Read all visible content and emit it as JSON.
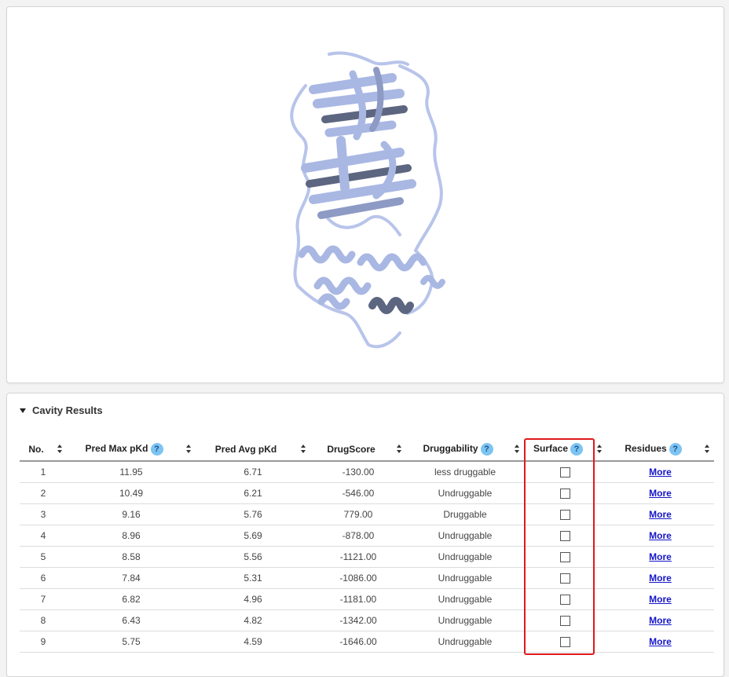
{
  "viewer": {
    "structure_icon": "protein-ribbon-structure"
  },
  "section": {
    "title": "Cavity Results",
    "collapse_icon": "caret-down-icon"
  },
  "table": {
    "headers": {
      "no": "No.",
      "pred_max": "Pred Max pKd",
      "pred_avg": "Pred Avg pKd",
      "drug_score": "DrugScore",
      "druggability": "Druggability",
      "surface": "Surface",
      "residues": "Residues"
    },
    "help_label": "?",
    "rows": [
      {
        "no": "1",
        "max": "11.95",
        "avg": "6.71",
        "score": "-130.00",
        "drug": "less druggable",
        "more": "More"
      },
      {
        "no": "2",
        "max": "10.49",
        "avg": "6.21",
        "score": "-546.00",
        "drug": "Undruggable",
        "more": "More"
      },
      {
        "no": "3",
        "max": "9.16",
        "avg": "5.76",
        "score": "779.00",
        "drug": "Druggable",
        "more": "More"
      },
      {
        "no": "4",
        "max": "8.96",
        "avg": "5.69",
        "score": "-878.00",
        "drug": "Undruggable",
        "more": "More"
      },
      {
        "no": "5",
        "max": "8.58",
        "avg": "5.56",
        "score": "-1121.00",
        "drug": "Undruggable",
        "more": "More"
      },
      {
        "no": "6",
        "max": "7.84",
        "avg": "5.31",
        "score": "-1086.00",
        "drug": "Undruggable",
        "more": "More"
      },
      {
        "no": "7",
        "max": "6.82",
        "avg": "4.96",
        "score": "-1181.00",
        "drug": "Undruggable",
        "more": "More"
      },
      {
        "no": "8",
        "max": "6.43",
        "avg": "4.82",
        "score": "-1342.00",
        "drug": "Undruggable",
        "more": "More"
      },
      {
        "no": "9",
        "max": "5.75",
        "avg": "4.59",
        "score": "-1646.00",
        "drug": "Undruggable",
        "more": "More"
      }
    ]
  },
  "colors": {
    "help_badge": "#7cc4f2",
    "link": "#1515c9",
    "highlight": "#e0191b",
    "ribbon": "#a9b7e3",
    "ribbon_dark": "#5d6680"
  }
}
